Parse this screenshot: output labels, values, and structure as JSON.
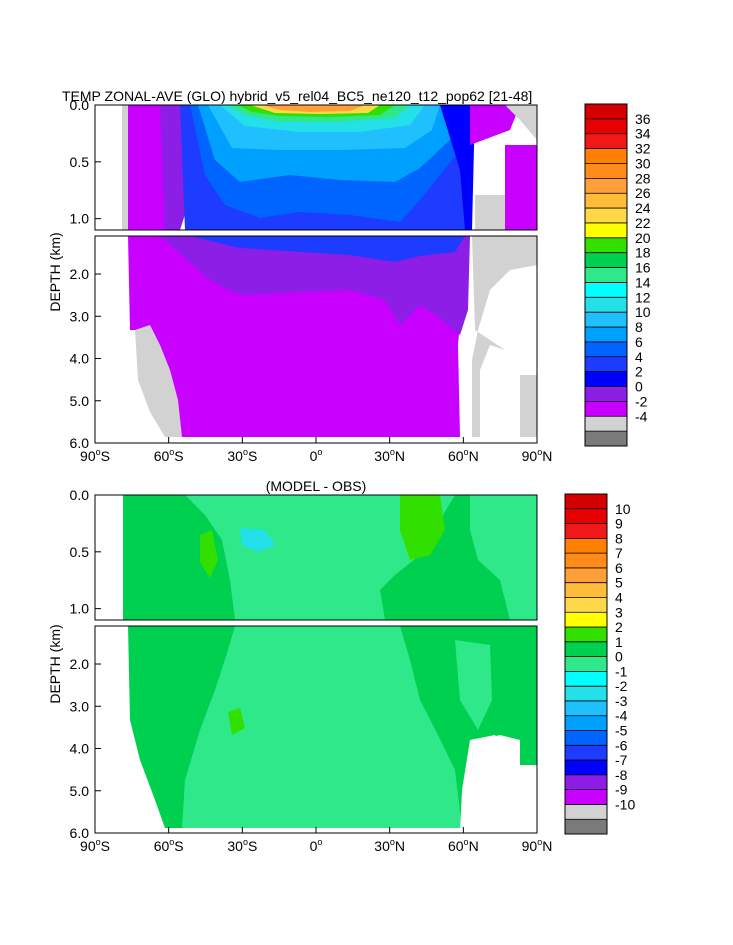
{
  "chart_data": [
    {
      "type": "heatmap",
      "title": "TEMP ZONAL-AVE (GLO) hybrid_v5_rel04_BC5_ne120_t12_pop62 [21-48]",
      "ylabel": "DEPTH (km)",
      "xlim": [
        -90,
        90
      ],
      "upper_ylim": [
        0.0,
        1.1
      ],
      "lower_ylim": [
        1.1,
        6.0
      ],
      "upper_yticks": [
        "0.0",
        "0.5",
        "1.0"
      ],
      "lower_yticks": [
        "2.0",
        "3.0",
        "4.0",
        "5.0",
        "6.0"
      ],
      "xticks": [
        {
          "value": -90,
          "num": "90",
          "hem": "S"
        },
        {
          "value": -60,
          "num": "60",
          "hem": "S"
        },
        {
          "value": -30,
          "num": "30",
          "hem": "S"
        },
        {
          "value": 0,
          "num": "0",
          "hem": ""
        },
        {
          "value": 30,
          "num": "30",
          "hem": "N"
        },
        {
          "value": 60,
          "num": "60",
          "hem": "N"
        },
        {
          "value": 90,
          "num": "90",
          "hem": "N"
        }
      ],
      "colorbar_levels": [
        "36",
        "34",
        "32",
        "30",
        "28",
        "26",
        "24",
        "22",
        "20",
        "18",
        "16",
        "14",
        "12",
        "10",
        "8",
        "6",
        "4",
        "2",
        "0",
        "-2",
        "-4"
      ],
      "colorbar_colors": [
        "#d40000",
        "#e60000",
        "#f01818",
        "#ff7f00",
        "#ff8c1a",
        "#ff9f3a",
        "#ffbb3a",
        "#ffd84a",
        "#ffff00",
        "#32e000",
        "#00d050",
        "#2ee88a",
        "#00ffff",
        "#24e0e8",
        "#20c0ff",
        "#00a0ff",
        "#0064ff",
        "#1e3cff",
        "#0000ff",
        "#8c1ee6",
        "#c800ff",
        "#d2d2d2",
        "#7a7a7a"
      ],
      "grid": false,
      "legend": "right colorbar"
    },
    {
      "type": "heatmap",
      "title": "(MODEL - OBS)",
      "ylabel": "DEPTH (km)",
      "xlim": [
        -90,
        90
      ],
      "upper_ylim": [
        0.0,
        1.1
      ],
      "lower_ylim": [
        1.1,
        6.0
      ],
      "upper_yticks": [
        "0.0",
        "0.5",
        "1.0"
      ],
      "lower_yticks": [
        "2.0",
        "3.0",
        "4.0",
        "5.0",
        "6.0"
      ],
      "xticks": [
        {
          "value": -90,
          "num": "90",
          "hem": "S"
        },
        {
          "value": -60,
          "num": "60",
          "hem": "S"
        },
        {
          "value": -30,
          "num": "30",
          "hem": "S"
        },
        {
          "value": 0,
          "num": "0",
          "hem": ""
        },
        {
          "value": 30,
          "num": "30",
          "hem": "N"
        },
        {
          "value": 60,
          "num": "60",
          "hem": "N"
        },
        {
          "value": 90,
          "num": "90",
          "hem": "N"
        }
      ],
      "colorbar_levels": [
        "10",
        "9",
        "8",
        "7",
        "6",
        "5",
        "4",
        "3",
        "2",
        "1",
        "0",
        "-1",
        "-2",
        "-3",
        "-4",
        "-5",
        "-6",
        "-7",
        "-8",
        "-9",
        "-10"
      ],
      "colorbar_colors": [
        "#d40000",
        "#e60000",
        "#f01818",
        "#ff7f00",
        "#ff8c1a",
        "#ff9f3a",
        "#ffbb3a",
        "#ffd84a",
        "#ffff00",
        "#32e000",
        "#00d050",
        "#2ee88a",
        "#00ffff",
        "#24e0e8",
        "#20c0ff",
        "#00a0ff",
        "#0064ff",
        "#1e3cff",
        "#0000ff",
        "#8c1ee6",
        "#c800ff",
        "#d2d2d2",
        "#7a7a7a"
      ],
      "grid": false,
      "legend": "right colorbar"
    }
  ]
}
